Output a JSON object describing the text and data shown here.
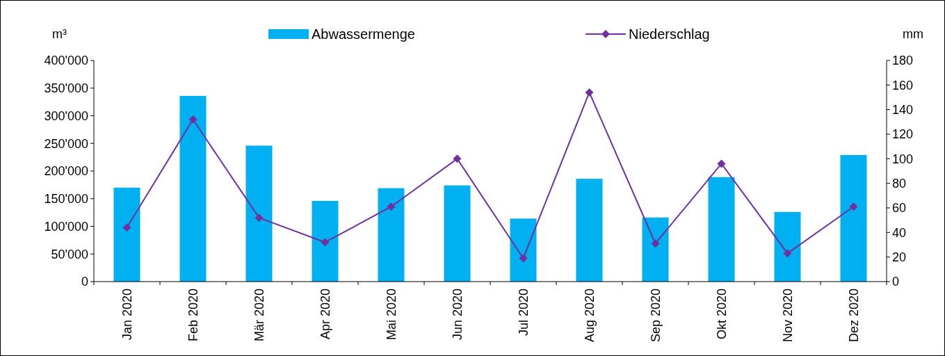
{
  "chart_data": {
    "type": "bar",
    "ylabel": "m³",
    "y2label": "mm",
    "categories": [
      "Jan 2020",
      "Feb 2020",
      "Mär 2020",
      "Apr 2020",
      "Mai 2020",
      "Jun 2020",
      "Jul 2020",
      "Aug 2020",
      "Sep 2020",
      "Okt 2020",
      "Nov 2020",
      "Dez 2020"
    ],
    "series": [
      {
        "name": "Abwassermenge",
        "color": "#00b0f0",
        "values": [
          170000,
          336000,
          246000,
          146000,
          169000,
          174000,
          114000,
          186000,
          116000,
          189000,
          126000,
          229000
        ]
      },
      {
        "name": "Niederschlag",
        "type": "line",
        "axis": "y2",
        "color": "#7030a0",
        "marker": "diamond",
        "values": [
          44,
          132,
          52,
          32,
          61,
          100,
          19,
          154,
          31,
          96,
          23,
          61
        ]
      }
    ],
    "ylim": [
      0,
      400000
    ],
    "yticks": [
      {
        "value": 0,
        "label": "0"
      },
      {
        "value": 50000,
        "label": "50'000"
      },
      {
        "value": 100000,
        "label": "100'000"
      },
      {
        "value": 150000,
        "label": "150'000"
      },
      {
        "value": 200000,
        "label": "200'000"
      },
      {
        "value": 250000,
        "label": "250'000"
      },
      {
        "value": 300000,
        "label": "300'000"
      },
      {
        "value": 350000,
        "label": "350'000"
      },
      {
        "value": 400000,
        "label": "400'000"
      }
    ],
    "y2lim": [
      0,
      180
    ],
    "y2ticks": [
      0,
      20,
      40,
      60,
      80,
      100,
      120,
      140,
      160,
      180
    ],
    "legend": "top",
    "grid": false
  }
}
